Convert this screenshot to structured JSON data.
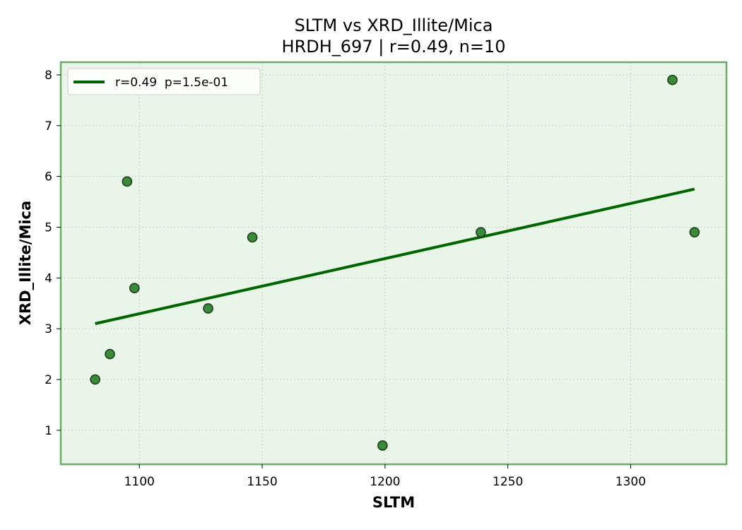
{
  "chart_data": {
    "type": "scatter",
    "title": "SLTM vs XRD_Illite/Mica",
    "subtitle": "HRDH_697 | r=0.49, n=10",
    "xlabel": "SLTM",
    "ylabel": "XRD_Illite/Mica",
    "xlim": [
      1068,
      1339
    ],
    "ylim": [
      0.33,
      8.25
    ],
    "xticks": [
      1100,
      1150,
      1200,
      1250,
      1300
    ],
    "yticks": [
      1,
      2,
      3,
      4,
      5,
      6,
      7,
      8
    ],
    "grid": true,
    "legend_position": "top-left",
    "legend": [
      "r=0.49  p=1.5e-01"
    ],
    "points": [
      {
        "x": 1082,
        "y": 2.0
      },
      {
        "x": 1088,
        "y": 2.5
      },
      {
        "x": 1095,
        "y": 5.9
      },
      {
        "x": 1098,
        "y": 3.8
      },
      {
        "x": 1128,
        "y": 3.4
      },
      {
        "x": 1146,
        "y": 4.8
      },
      {
        "x": 1199,
        "y": 0.7
      },
      {
        "x": 1239,
        "y": 4.9
      },
      {
        "x": 1317,
        "y": 7.9
      },
      {
        "x": 1326,
        "y": 4.9
      }
    ],
    "fit_line": {
      "x": [
        1082,
        1326
      ],
      "y": [
        3.1,
        5.75
      ]
    },
    "colors": {
      "point_fill": "#3a8a3a",
      "point_edge": "#1b3d1b",
      "fit_line": "#006400",
      "plot_bg": "#e8f5e8",
      "frame": "#6aaa6a",
      "grid": "#c4cfc4"
    }
  }
}
